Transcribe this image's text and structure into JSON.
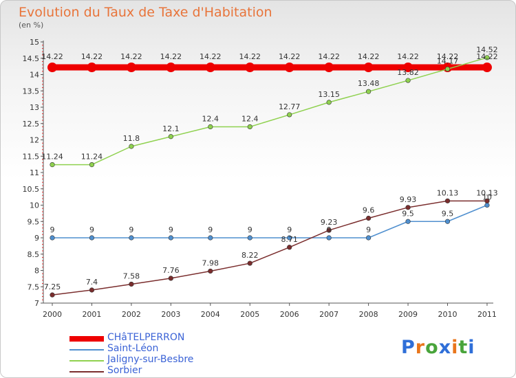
{
  "title": "Evolution du Taux de Taxe d'Habitation",
  "unit_label": "(en %)",
  "logo": {
    "text": "Proxiti",
    "letter_colors": [
      "#2f6fd8",
      "#e9761c",
      "#49a43b",
      "#2f6fd8",
      "#e9761c",
      "#49a43b",
      "#2f6fd8"
    ]
  },
  "chart_data": {
    "type": "line",
    "title": "Evolution du Taux de Taxe d'Habitation",
    "ylabel": "(en %)",
    "xlabel": "",
    "x": [
      "2000",
      "2001",
      "2002",
      "2003",
      "2004",
      "2005",
      "2006",
      "2007",
      "2008",
      "2009",
      "2010",
      "2011"
    ],
    "ylim": [
      7,
      15
    ],
    "yticks": [
      "7",
      "7.5",
      "8",
      "8.5",
      "9",
      "9.5",
      "10",
      "10.5",
      "11",
      "11.5",
      "12",
      "12.5",
      "13",
      "13.5",
      "14",
      "14.5",
      "15"
    ],
    "grid": false,
    "legend_position": "bottom-left",
    "series": [
      {
        "name": "CHâTELPERRON",
        "color": "#ee0000",
        "values": [
          14.22,
          14.22,
          14.22,
          14.22,
          14.22,
          14.22,
          14.22,
          14.22,
          14.22,
          14.22,
          14.22,
          14.22
        ],
        "labels": [
          "14.22",
          "14.22",
          "14.22",
          "14.22",
          "14.22",
          "14.22",
          "14.22",
          "14.22",
          "14.22",
          "14.22",
          "14.22",
          "14.22"
        ]
      },
      {
        "name": "Saint-Léon",
        "color": "#4f8fcf",
        "values": [
          9,
          9,
          9,
          9,
          9,
          9,
          9,
          9,
          9,
          9.5,
          9.5,
          10
        ],
        "labels": [
          "9",
          "9",
          "9",
          "9",
          "9",
          "9",
          "9",
          "9",
          "9",
          "9.5",
          "9.5",
          "10"
        ]
      },
      {
        "name": "Jaligny-sur-Besbre",
        "color": "#8fd14f",
        "values": [
          11.24,
          11.24,
          11.8,
          12.1,
          12.4,
          12.4,
          12.77,
          13.15,
          13.48,
          13.82,
          14.17,
          14.52
        ],
        "labels": [
          "11.24",
          "11.24",
          "11.8",
          "12.1",
          "12.4",
          "12.4",
          "12.77",
          "13.15",
          "13.48",
          "13.82",
          "14.17",
          "14.52"
        ]
      },
      {
        "name": "Sorbier",
        "color": "#7a2d2d",
        "values": [
          7.25,
          7.4,
          7.58,
          7.76,
          7.98,
          8.22,
          8.71,
          9.23,
          9.6,
          9.93,
          10.13,
          10.13
        ],
        "labels": [
          "7.25",
          "7.4",
          "7.58",
          "7.76",
          "7.98",
          "8.22",
          "8.71",
          "9.23",
          "9.6",
          "9.93",
          "10.13",
          "10.13"
        ]
      }
    ]
  }
}
